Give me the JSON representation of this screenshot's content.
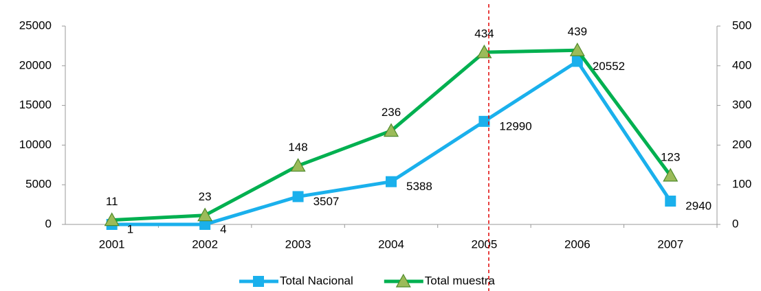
{
  "chart_data": {
    "type": "line",
    "categories": [
      "2001",
      "2002",
      "2003",
      "2004",
      "2005",
      "2006",
      "2007"
    ],
    "series": [
      {
        "name": "Total Nacional",
        "color": "#1ab0ec",
        "marker": "square",
        "axis": "y",
        "values": [
          1,
          4,
          3507,
          5388,
          12990,
          20552,
          2940
        ]
      },
      {
        "name": "Total muestra",
        "color": "#00b050",
        "marker": "triangle",
        "marker_color": "#9bbb59",
        "axis": "y2",
        "values": [
          11,
          23,
          148,
          236,
          434,
          439,
          123
        ]
      }
    ],
    "ylim": [
      0,
      25000
    ],
    "yticks": [
      0,
      5000,
      10000,
      15000,
      20000,
      25000
    ],
    "y2lim": [
      0,
      500
    ],
    "y2ticks": [
      0,
      100,
      200,
      300,
      400,
      500
    ],
    "grid": false,
    "legend": "bottom"
  }
}
